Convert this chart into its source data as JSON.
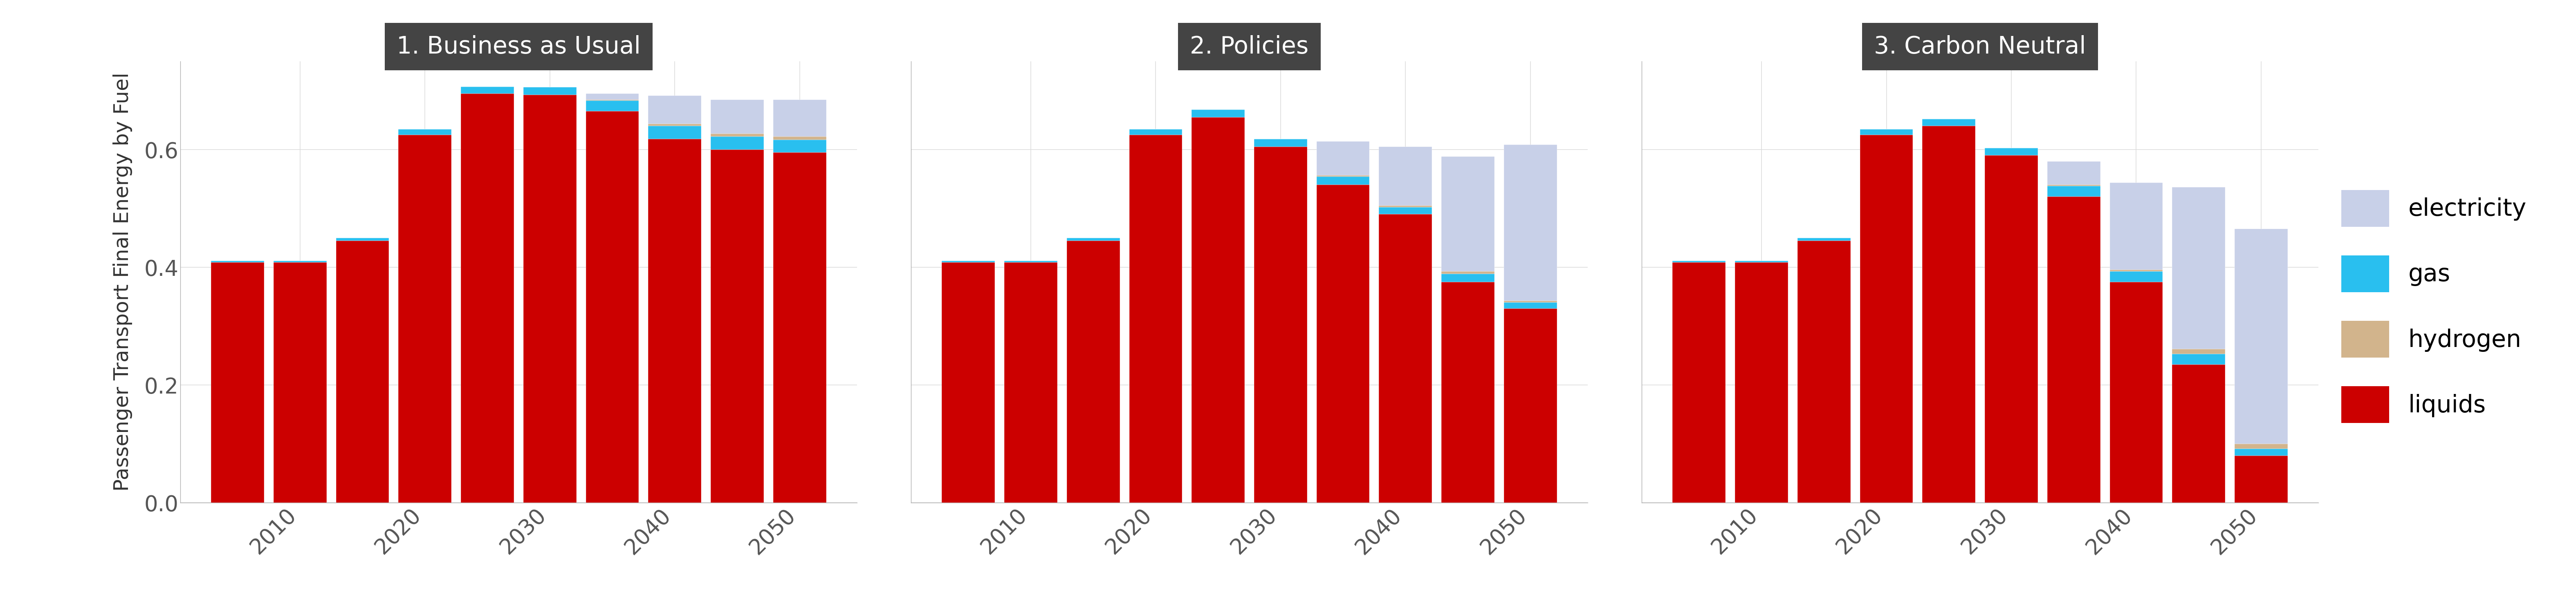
{
  "years": [
    2005,
    2010,
    2015,
    2020,
    2025,
    2030,
    2035,
    2040,
    2045,
    2050
  ],
  "xtick_years": [
    2010,
    2020,
    2030,
    2040,
    2050
  ],
  "panels": [
    "1. Business as Usual",
    "2. Policies",
    "3. Carbon Neutral"
  ],
  "colors": {
    "liquids": "#CC0000",
    "electricity": "#C8D0E8",
    "gas": "#29BFEF",
    "hydrogen": "#D2B48C"
  },
  "data": {
    "1. Business as Usual": {
      "liquids": [
        0.408,
        0.408,
        0.445,
        0.625,
        0.695,
        0.693,
        0.665,
        0.618,
        0.6,
        0.595
      ],
      "gas": [
        0.003,
        0.003,
        0.005,
        0.01,
        0.012,
        0.013,
        0.018,
        0.022,
        0.022,
        0.022
      ],
      "hydrogen": [
        0.0,
        0.0,
        0.0,
        0.0,
        0.0,
        0.0,
        0.002,
        0.004,
        0.005,
        0.005
      ],
      "electricity": [
        0.0,
        0.0,
        0.0,
        0.0,
        0.0,
        0.0,
        0.01,
        0.048,
        0.058,
        0.063
      ]
    },
    "2. Policies": {
      "liquids": [
        0.408,
        0.408,
        0.445,
        0.625,
        0.655,
        0.605,
        0.54,
        0.49,
        0.375,
        0.33
      ],
      "gas": [
        0.003,
        0.003,
        0.005,
        0.01,
        0.013,
        0.013,
        0.014,
        0.012,
        0.014,
        0.01
      ],
      "hydrogen": [
        0.0,
        0.0,
        0.0,
        0.0,
        0.0,
        0.0,
        0.002,
        0.003,
        0.004,
        0.003
      ],
      "electricity": [
        0.0,
        0.0,
        0.0,
        0.0,
        0.0,
        0.0,
        0.058,
        0.1,
        0.195,
        0.265
      ]
    },
    "3. Carbon Neutral": {
      "liquids": [
        0.408,
        0.408,
        0.445,
        0.625,
        0.64,
        0.59,
        0.52,
        0.375,
        0.235,
        0.08
      ],
      "gas": [
        0.003,
        0.003,
        0.005,
        0.01,
        0.012,
        0.013,
        0.018,
        0.018,
        0.018,
        0.012
      ],
      "hydrogen": [
        0.0,
        0.0,
        0.0,
        0.0,
        0.0,
        0.0,
        0.002,
        0.003,
        0.008,
        0.008
      ],
      "electricity": [
        0.0,
        0.0,
        0.0,
        0.0,
        0.0,
        0.0,
        0.04,
        0.148,
        0.275,
        0.365
      ]
    }
  },
  "ylim": [
    0,
    0.75
  ],
  "yticks": [
    0.0,
    0.2,
    0.4,
    0.6
  ],
  "ylabel": "Passenger Transport Final Energy by Fuel",
  "background_color": "#FFFFFF",
  "panel_title_bg": "#444444",
  "panel_title_color": "#FFFFFF",
  "grid_color": "#DDDDDD",
  "bar_width": 0.85,
  "legend_labels": [
    "electricity",
    "gas",
    "hydrogen",
    "liquids"
  ],
  "legend_colors": [
    "#C8D0E8",
    "#29BFEF",
    "#D2B48C",
    "#CC0000"
  ]
}
